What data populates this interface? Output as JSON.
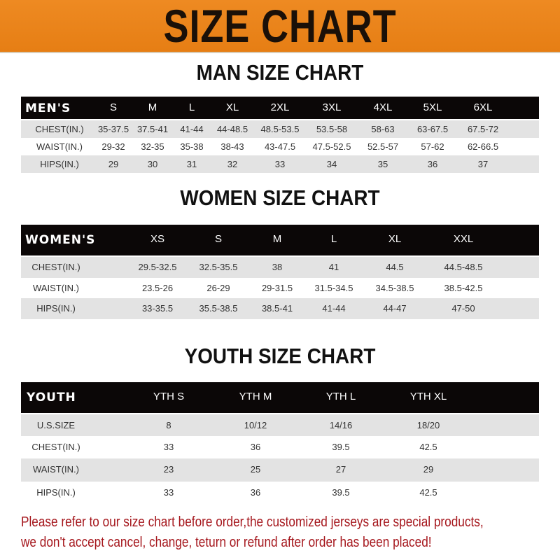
{
  "banner": {
    "title": "SIZE CHART",
    "color": "#ec851c"
  },
  "men": {
    "title": "MAN SIZE CHART",
    "header": [
      "MEN'S",
      "S",
      "M",
      "L",
      "XL",
      "2XL",
      "3XL",
      "4XL",
      "5XL",
      "6XL"
    ],
    "rows": [
      [
        "CHEST(IN.)",
        "35-37.5",
        "37.5-41",
        "41-44",
        "44-48.5",
        "48.5-53.5",
        "53.5-58",
        "58-63",
        "63-67.5",
        "67.5-72"
      ],
      [
        "WAIST(IN.)",
        "29-32",
        "32-35",
        "35-38",
        "38-43",
        "43-47.5",
        "47.5-52.5",
        "52.5-57",
        "57-62",
        "62-66.5"
      ],
      [
        "HIPS(IN.)",
        "29",
        "30",
        "31",
        "32",
        "33",
        "34",
        "35",
        "36",
        "37"
      ]
    ]
  },
  "women": {
    "title": "WOMEN SIZE CHART",
    "header": [
      "WOMEN'S",
      "XS",
      "S",
      "M",
      "L",
      "XL",
      "XXL"
    ],
    "rows": [
      [
        "CHEST(IN.)",
        "29.5-32.5",
        "32.5-35.5",
        "38",
        "41",
        "44.5",
        "44.5-48.5"
      ],
      [
        "WAIST(IN.)",
        "23.5-26",
        "26-29",
        "29-31.5",
        "31.5-34.5",
        "34.5-38.5",
        "38.5-42.5"
      ],
      [
        "HIPS(IN.)",
        "33-35.5",
        "35.5-38.5",
        "38.5-41",
        "41-44",
        "44-47",
        "47-50"
      ]
    ]
  },
  "youth": {
    "title": "YOUTH SIZE CHART",
    "header": [
      "YOUTH",
      "YTH S",
      "YTH M",
      "YTH L",
      "YTH XL"
    ],
    "rows": [
      [
        "U.S.SIZE",
        "8",
        "10/12",
        "14/16",
        "18/20"
      ],
      [
        "CHEST(IN.)",
        "33",
        "36",
        "39.5",
        "42.5"
      ],
      [
        "WAIST(IN.)",
        "23",
        "25",
        "27",
        "29"
      ],
      [
        "HIPS(IN.)",
        "33",
        "36",
        "39.5",
        "42.5"
      ]
    ]
  },
  "note": {
    "line1": "Please refer to our size chart before order,the customized jerseys are special products,",
    "line2": "we don't accept cancel, change, teturn or refund after order has been placed!",
    "color": "#a5161c"
  }
}
